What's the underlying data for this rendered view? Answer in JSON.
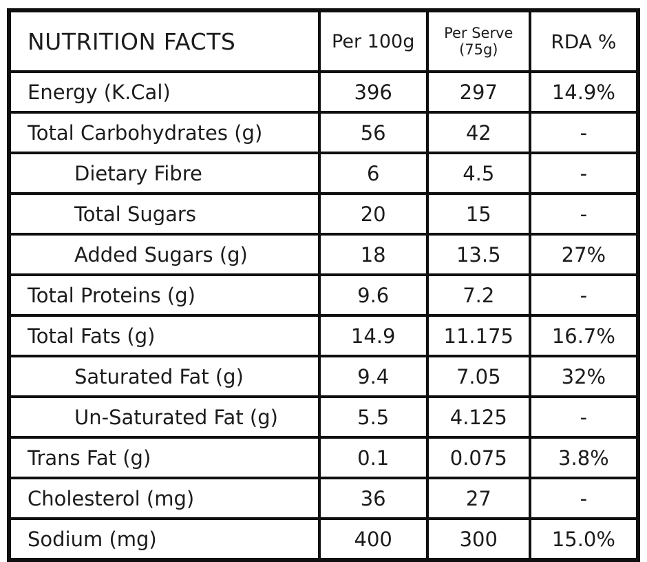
{
  "table": {
    "title": "NUTRITION FACTS",
    "columns": {
      "per100g": "Per 100g",
      "per_serve_line1": "Per Serve",
      "per_serve_line2": "(75g)",
      "rda": "RDA %"
    },
    "rows": [
      {
        "label": "Energy (K.Cal)",
        "indent": false,
        "per100g": "396",
        "per_serve": "297",
        "rda": "14.9%"
      },
      {
        "label": "Total Carbohydrates (g)",
        "indent": false,
        "per100g": "56",
        "per_serve": "42",
        "rda": "-"
      },
      {
        "label": "Dietary Fibre",
        "indent": true,
        "per100g": "6",
        "per_serve": "4.5",
        "rda": "-"
      },
      {
        "label": "Total Sugars",
        "indent": true,
        "per100g": "20",
        "per_serve": "15",
        "rda": "-"
      },
      {
        "label": "Added Sugars (g)",
        "indent": true,
        "per100g": "18",
        "per_serve": "13.5",
        "rda": "27%"
      },
      {
        "label": "Total Proteins (g)",
        "indent": false,
        "per100g": "9.6",
        "per_serve": "7.2",
        "rda": "-"
      },
      {
        "label": "Total Fats (g)",
        "indent": false,
        "per100g": "14.9",
        "per_serve": "11.175",
        "rda": "16.7%"
      },
      {
        "label": "Saturated Fat (g)",
        "indent": true,
        "per100g": "9.4",
        "per_serve": "7.05",
        "rda": "32%"
      },
      {
        "label": "Un-Saturated Fat (g)",
        "indent": true,
        "per100g": "5.5",
        "per_serve": "4.125",
        "rda": "-"
      },
      {
        "label": "Trans Fat (g)",
        "indent": false,
        "per100g": "0.1",
        "per_serve": "0.075",
        "rda": "3.8%"
      },
      {
        "label": "Cholesterol (mg)",
        "indent": false,
        "per100g": "36",
        "per_serve": "27",
        "rda": "-"
      },
      {
        "label": "Sodium (mg)",
        "indent": false,
        "per100g": "400",
        "per_serve": "300",
        "rda": "15.0%"
      }
    ],
    "colors": {
      "border": "#0f0f0f",
      "text": "#1c1c1c",
      "background": "#ffffff"
    }
  }
}
